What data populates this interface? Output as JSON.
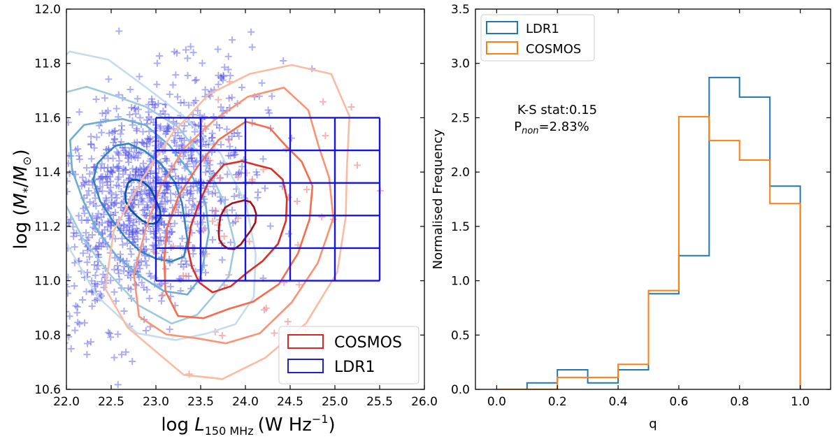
{
  "chart_data": [
    {
      "type": "scatter",
      "panel": "left",
      "title": "",
      "xlabel": "log L_150 MHz (W Hz^-1)",
      "ylabel": "log (M*/M⊙)",
      "xlabel_parts": {
        "main": "log ",
        "var": "L",
        "sub": "150 MHz",
        "unit": "(W Hz",
        "sup": "−1",
        "close": ")"
      },
      "ylabel_parts": {
        "main": "log (",
        "var": "M",
        "sub": "*",
        "slash": "/",
        "var2": "M",
        "sub2": "⊙",
        "close": ")"
      },
      "xlim": [
        22.0,
        26.0
      ],
      "ylim": [
        10.6,
        12.0
      ],
      "xticks": [
        22.0,
        22.5,
        23.0,
        23.5,
        24.0,
        24.5,
        25.0,
        25.5,
        26.0
      ],
      "yticks": [
        10.6,
        10.8,
        11.0,
        11.2,
        11.4,
        11.6,
        11.8,
        12.0
      ],
      "xtick_labels": [
        "22.0",
        "22.5",
        "23.0",
        "23.5",
        "24.0",
        "24.5",
        "25.0",
        "25.5",
        "26.0"
      ],
      "ytick_labels": [
        "10.6",
        "10.8",
        "11.0",
        "11.2",
        "11.4",
        "11.6",
        "11.8",
        "12.0"
      ],
      "legend_position": "lower-right",
      "legend": [
        {
          "label": "COSMOS",
          "color": "#d62728"
        },
        {
          "label": "LDR1",
          "color": "#1f1fd6"
        }
      ],
      "grid_boxes": {
        "x_edges": [
          23.0,
          23.5,
          24.0,
          24.5,
          25.0,
          25.5
        ],
        "y_edges": [
          11.0,
          11.12,
          11.24,
          11.36,
          11.48,
          11.6
        ],
        "color": "#1414e0"
      },
      "ldr1_scatter": {
        "marker": "plus",
        "color": "#4a4ae6",
        "approx_count": 1100,
        "centre": [
          22.85,
          11.3
        ],
        "spread": [
          0.6,
          0.25
        ]
      },
      "ldr1_contours": {
        "centre": [
          22.85,
          11.29
        ],
        "levels": [
          0.12,
          0.25,
          0.45,
          0.7,
          0.95
        ],
        "colors": [
          "#c6dbef",
          "#9ecae1",
          "#6baed6",
          "#3182bd",
          "#08519c"
        ]
      },
      "cosmos_contours": {
        "centre": [
          23.9,
          11.21
        ],
        "levels": [
          0.12,
          0.25,
          0.45,
          0.7,
          0.95
        ],
        "colors": [
          "#fcbba1",
          "#fc9272",
          "#fb6a4a",
          "#de2d26",
          "#a50f15"
        ]
      },
      "cosmos_scatter": {
        "marker": "plus",
        "color": "#f08080",
        "approx_count": 60
      }
    },
    {
      "type": "step-histogram",
      "panel": "right",
      "title": "",
      "xlabel": "q",
      "ylabel": "Normalised Frequency",
      "xlim": [
        -0.07,
        1.1
      ],
      "ylim": [
        0.0,
        3.5
      ],
      "xticks": [
        0.0,
        0.2,
        0.4,
        0.6,
        0.8,
        1.0
      ],
      "yticks": [
        0.0,
        0.5,
        1.0,
        1.5,
        2.0,
        2.5,
        3.0,
        3.5
      ],
      "xtick_labels": [
        "0.0",
        "0.2",
        "0.4",
        "0.6",
        "0.8",
        "1.0"
      ],
      "ytick_labels": [
        "0.0",
        "0.5",
        "1.0",
        "1.5",
        "2.0",
        "2.5",
        "3.0",
        "3.5"
      ],
      "bin_edges": [
        0.0,
        0.1,
        0.2,
        0.3,
        0.4,
        0.5,
        0.6,
        0.7,
        0.8,
        0.9,
        1.0
      ],
      "series": [
        {
          "name": "LDR1",
          "color": "#1f77b4",
          "values": [
            0.0,
            0.06,
            0.18,
            0.06,
            0.18,
            0.88,
            1.23,
            2.87,
            2.69,
            1.87
          ]
        },
        {
          "name": "COSMOS",
          "color": "#ff7f0e",
          "values": [
            0.0,
            0.0,
            0.11,
            0.11,
            0.23,
            0.91,
            2.51,
            2.29,
            2.11,
            1.71
          ]
        }
      ],
      "legend_position": "upper-left",
      "annotation": {
        "line1": "K-S stat:0.15",
        "line2_prefix": "P",
        "line2_sub": "non",
        "line2_suffix": "=2.83%"
      }
    }
  ]
}
